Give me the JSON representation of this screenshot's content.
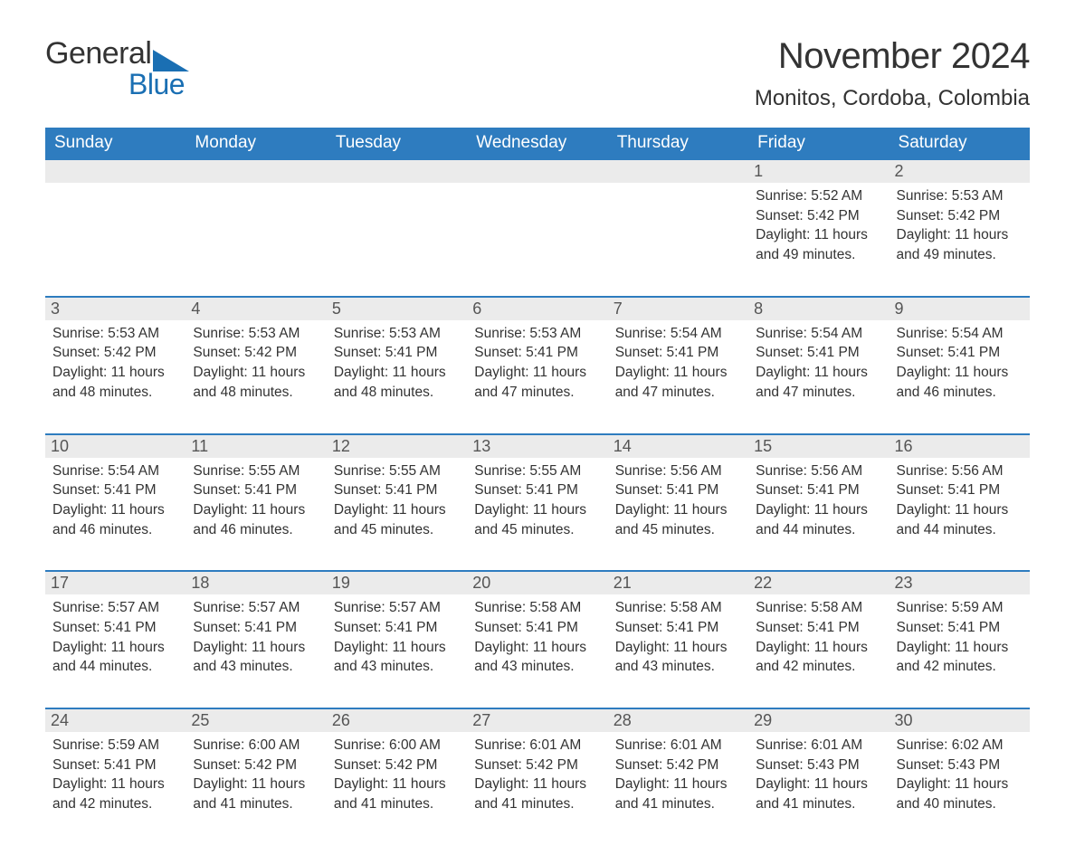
{
  "logo": {
    "text1": "General",
    "text2": "Blue",
    "tri_color": "#1a6fb3"
  },
  "title": "November 2024",
  "location": "Monitos, Cordoba, Colombia",
  "colors": {
    "header_bg": "#2e7cbf",
    "header_text": "#ffffff",
    "week_border": "#2e7cbf",
    "daynum_bg": "#ebebeb",
    "body_text": "#333333",
    "background": "#ffffff"
  },
  "day_headers": [
    "Sunday",
    "Monday",
    "Tuesday",
    "Wednesday",
    "Thursday",
    "Friday",
    "Saturday"
  ],
  "weeks": [
    [
      {
        "empty": true
      },
      {
        "empty": true
      },
      {
        "empty": true
      },
      {
        "empty": true
      },
      {
        "empty": true
      },
      {
        "day": "1",
        "sunrise": "Sunrise: 5:52 AM",
        "sunset": "Sunset: 5:42 PM",
        "daylight": "Daylight: 11 hours and 49 minutes."
      },
      {
        "day": "2",
        "sunrise": "Sunrise: 5:53 AM",
        "sunset": "Sunset: 5:42 PM",
        "daylight": "Daylight: 11 hours and 49 minutes."
      }
    ],
    [
      {
        "day": "3",
        "sunrise": "Sunrise: 5:53 AM",
        "sunset": "Sunset: 5:42 PM",
        "daylight": "Daylight: 11 hours and 48 minutes."
      },
      {
        "day": "4",
        "sunrise": "Sunrise: 5:53 AM",
        "sunset": "Sunset: 5:42 PM",
        "daylight": "Daylight: 11 hours and 48 minutes."
      },
      {
        "day": "5",
        "sunrise": "Sunrise: 5:53 AM",
        "sunset": "Sunset: 5:41 PM",
        "daylight": "Daylight: 11 hours and 48 minutes."
      },
      {
        "day": "6",
        "sunrise": "Sunrise: 5:53 AM",
        "sunset": "Sunset: 5:41 PM",
        "daylight": "Daylight: 11 hours and 47 minutes."
      },
      {
        "day": "7",
        "sunrise": "Sunrise: 5:54 AM",
        "sunset": "Sunset: 5:41 PM",
        "daylight": "Daylight: 11 hours and 47 minutes."
      },
      {
        "day": "8",
        "sunrise": "Sunrise: 5:54 AM",
        "sunset": "Sunset: 5:41 PM",
        "daylight": "Daylight: 11 hours and 47 minutes."
      },
      {
        "day": "9",
        "sunrise": "Sunrise: 5:54 AM",
        "sunset": "Sunset: 5:41 PM",
        "daylight": "Daylight: 11 hours and 46 minutes."
      }
    ],
    [
      {
        "day": "10",
        "sunrise": "Sunrise: 5:54 AM",
        "sunset": "Sunset: 5:41 PM",
        "daylight": "Daylight: 11 hours and 46 minutes."
      },
      {
        "day": "11",
        "sunrise": "Sunrise: 5:55 AM",
        "sunset": "Sunset: 5:41 PM",
        "daylight": "Daylight: 11 hours and 46 minutes."
      },
      {
        "day": "12",
        "sunrise": "Sunrise: 5:55 AM",
        "sunset": "Sunset: 5:41 PM",
        "daylight": "Daylight: 11 hours and 45 minutes."
      },
      {
        "day": "13",
        "sunrise": "Sunrise: 5:55 AM",
        "sunset": "Sunset: 5:41 PM",
        "daylight": "Daylight: 11 hours and 45 minutes."
      },
      {
        "day": "14",
        "sunrise": "Sunrise: 5:56 AM",
        "sunset": "Sunset: 5:41 PM",
        "daylight": "Daylight: 11 hours and 45 minutes."
      },
      {
        "day": "15",
        "sunrise": "Sunrise: 5:56 AM",
        "sunset": "Sunset: 5:41 PM",
        "daylight": "Daylight: 11 hours and 44 minutes."
      },
      {
        "day": "16",
        "sunrise": "Sunrise: 5:56 AM",
        "sunset": "Sunset: 5:41 PM",
        "daylight": "Daylight: 11 hours and 44 minutes."
      }
    ],
    [
      {
        "day": "17",
        "sunrise": "Sunrise: 5:57 AM",
        "sunset": "Sunset: 5:41 PM",
        "daylight": "Daylight: 11 hours and 44 minutes."
      },
      {
        "day": "18",
        "sunrise": "Sunrise: 5:57 AM",
        "sunset": "Sunset: 5:41 PM",
        "daylight": "Daylight: 11 hours and 43 minutes."
      },
      {
        "day": "19",
        "sunrise": "Sunrise: 5:57 AM",
        "sunset": "Sunset: 5:41 PM",
        "daylight": "Daylight: 11 hours and 43 minutes."
      },
      {
        "day": "20",
        "sunrise": "Sunrise: 5:58 AM",
        "sunset": "Sunset: 5:41 PM",
        "daylight": "Daylight: 11 hours and 43 minutes."
      },
      {
        "day": "21",
        "sunrise": "Sunrise: 5:58 AM",
        "sunset": "Sunset: 5:41 PM",
        "daylight": "Daylight: 11 hours and 43 minutes."
      },
      {
        "day": "22",
        "sunrise": "Sunrise: 5:58 AM",
        "sunset": "Sunset: 5:41 PM",
        "daylight": "Daylight: 11 hours and 42 minutes."
      },
      {
        "day": "23",
        "sunrise": "Sunrise: 5:59 AM",
        "sunset": "Sunset: 5:41 PM",
        "daylight": "Daylight: 11 hours and 42 minutes."
      }
    ],
    [
      {
        "day": "24",
        "sunrise": "Sunrise: 5:59 AM",
        "sunset": "Sunset: 5:41 PM",
        "daylight": "Daylight: 11 hours and 42 minutes."
      },
      {
        "day": "25",
        "sunrise": "Sunrise: 6:00 AM",
        "sunset": "Sunset: 5:42 PM",
        "daylight": "Daylight: 11 hours and 41 minutes."
      },
      {
        "day": "26",
        "sunrise": "Sunrise: 6:00 AM",
        "sunset": "Sunset: 5:42 PM",
        "daylight": "Daylight: 11 hours and 41 minutes."
      },
      {
        "day": "27",
        "sunrise": "Sunrise: 6:01 AM",
        "sunset": "Sunset: 5:42 PM",
        "daylight": "Daylight: 11 hours and 41 minutes."
      },
      {
        "day": "28",
        "sunrise": "Sunrise: 6:01 AM",
        "sunset": "Sunset: 5:42 PM",
        "daylight": "Daylight: 11 hours and 41 minutes."
      },
      {
        "day": "29",
        "sunrise": "Sunrise: 6:01 AM",
        "sunset": "Sunset: 5:43 PM",
        "daylight": "Daylight: 11 hours and 41 minutes."
      },
      {
        "day": "30",
        "sunrise": "Sunrise: 6:02 AM",
        "sunset": "Sunset: 5:43 PM",
        "daylight": "Daylight: 11 hours and 40 minutes."
      }
    ]
  ]
}
